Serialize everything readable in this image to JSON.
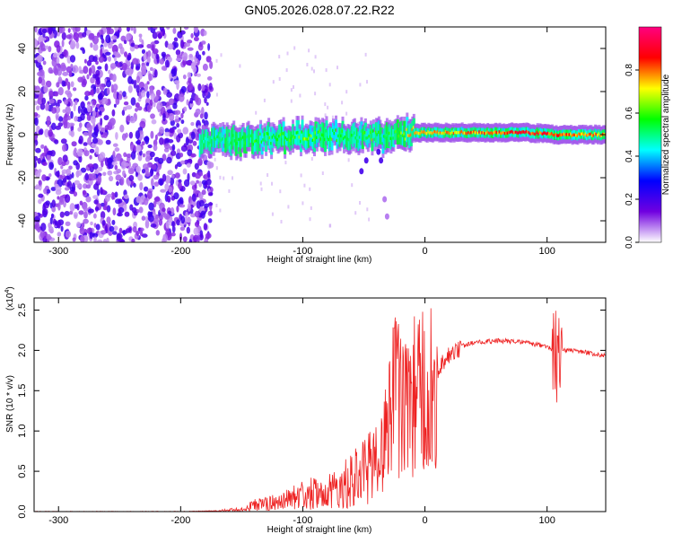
{
  "figure": {
    "title": "GN05.2026.028.07.22.R22"
  },
  "chart_data": [
    {
      "type": "heatmap",
      "panel": "spectrogram",
      "xlabel": "Height of straight line (km)",
      "ylabel": "Frequency (Hz)",
      "xlim": [
        -320,
        148
      ],
      "ylim": [
        -50,
        50
      ],
      "x_ticks": [
        -300,
        -200,
        -100,
        0,
        100
      ],
      "x_tick_labels": [
        "-300",
        "-200",
        "-100",
        "0",
        "100"
      ],
      "y_ticks": [
        -40,
        -20,
        0,
        20,
        40
      ],
      "y_tick_labels": [
        "-40",
        "-20",
        "0",
        "20",
        "40"
      ],
      "colorbar": {
        "label": "Normalized spectral amplitude",
        "range": [
          0,
          1
        ],
        "ticks": [
          0.0,
          0.2,
          0.4,
          0.6,
          0.8
        ],
        "tick_labels": [
          "0.0",
          "0.2",
          "0.4",
          "0.6",
          "0.8"
        ],
        "colormap": [
          "#ffffff",
          "#7000e0",
          "#0000ff",
          "#00ffff",
          "#00ff00",
          "#ffff00",
          "#ff0000",
          "#ff0080"
        ]
      },
      "regions": [
        {
          "name": "noise",
          "x_range": [
            -320,
            -175
          ],
          "y_range": [
            -50,
            50
          ],
          "level": 0.2
        },
        {
          "name": "signal-ridge",
          "x_range": [
            -185,
            148
          ],
          "center_freq_hz": 0,
          "level": 0.75
        }
      ],
      "ridge_centerline": {
        "x": [
          -185,
          -160,
          -140,
          -120,
          -100,
          -80,
          -60,
          -45,
          -35,
          -25,
          -10,
          0,
          20,
          50,
          80,
          110,
          148
        ],
        "freq": [
          -3,
          -2.5,
          -2,
          -1.5,
          -1,
          0,
          -1,
          0,
          -2,
          -1,
          1,
          1,
          1,
          1,
          1,
          0,
          0
        ],
        "amplitude": [
          0.5,
          0.55,
          0.6,
          0.6,
          0.65,
          0.6,
          0.55,
          0.6,
          0.55,
          0.6,
          0.8,
          0.75,
          0.8,
          0.85,
          0.9,
          0.85,
          0.8
        ]
      }
    },
    {
      "type": "line",
      "panel": "snr",
      "xlabel": "Height of straight line (km)",
      "ylabel": "SNR (10 * v/v)",
      "y_multiplier_label": "(x10",
      "y_multiplier_exp": "4",
      "y_multiplier_close": ")",
      "xlim": [
        -320,
        148
      ],
      "ylim": [
        0,
        2.65
      ],
      "x_ticks": [
        -300,
        -200,
        -100,
        0,
        100
      ],
      "x_tick_labels": [
        "-300",
        "-200",
        "-100",
        "0",
        "100"
      ],
      "y_ticks": [
        0.0,
        0.5,
        1.0,
        1.5,
        2.0,
        2.5
      ],
      "y_tick_labels": [
        "0.0",
        "0.5",
        "1.0",
        "1.5",
        "2.0",
        "2.5"
      ],
      "series": [
        {
          "name": "SNR",
          "color": "#ee2222",
          "x": [
            -320,
            -200,
            -170,
            -150,
            -140,
            -130,
            -120,
            -100,
            -80,
            -60,
            -40,
            -30,
            -25,
            -20,
            -10,
            -5,
            0,
            5,
            10,
            20,
            30,
            40,
            60,
            80,
            100,
            105,
            108,
            110,
            115,
            130,
            148
          ],
          "y": [
            0.0,
            0.0,
            0.01,
            0.03,
            0.08,
            0.1,
            0.12,
            0.2,
            0.28,
            0.38,
            0.6,
            1.0,
            1.6,
            1.3,
            1.4,
            1.5,
            1.5,
            1.6,
            1.75,
            1.95,
            2.05,
            2.1,
            2.12,
            2.1,
            2.05,
            2.0,
            1.9,
            2.05,
            2.0,
            1.98,
            1.93
          ]
        }
      ]
    }
  ]
}
